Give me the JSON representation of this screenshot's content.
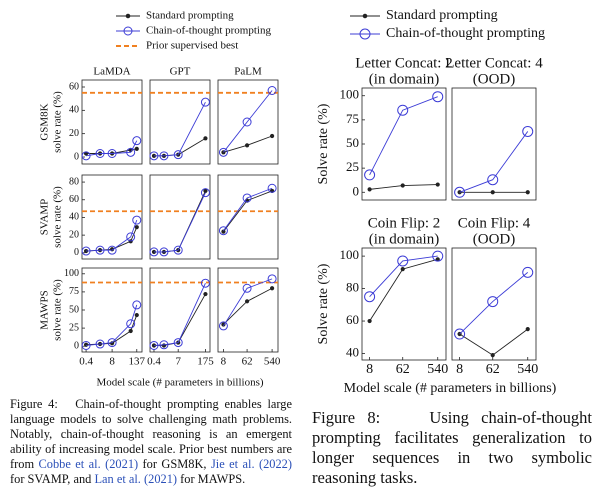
{
  "figure4": {
    "legend": [
      {
        "name": "Standard prompting",
        "color": "#222222",
        "marker": "dot"
      },
      {
        "name": "Chain-of-thought prompting",
        "color": "#3c3cd6",
        "marker": "circle"
      },
      {
        "name": "Prior supervised best",
        "color": "#f08020",
        "marker": "dashed"
      }
    ],
    "x_label": "Model scale (# parameters in billions)",
    "caption": {
      "label": "Figure 4:",
      "parts": [
        "Chain-of-thought prompting enables large language models to solve challenging math problems. Notably, chain-of-thought reasoning is an emergent ability of increasing model scale. Prior best numbers are from ",
        "Cobbe et al. (2021)",
        " for GSM8K, ",
        "Jie et al. (2022)",
        " for SVAMP, and ",
        "Lan et al. (2021)",
        " for MAWPS."
      ]
    }
  },
  "figure8": {
    "legend": [
      {
        "name": "Standard prompting",
        "color": "#222222",
        "marker": "dot"
      },
      {
        "name": "Chain-of-thought prompting",
        "color": "#3c3cd6",
        "marker": "circle"
      }
    ],
    "x_label": "Model scale (# parameters in billions)",
    "caption": {
      "label": "Figure 8:",
      "text": "Using chain-of-thought prompting facilitates generalization to longer sequences in two symbolic reasoning tasks."
    }
  },
  "chart_data": [
    {
      "type": "line",
      "title": [
        "LaMDA"
      ],
      "ylabel": [
        "GSM8K",
        "solve rate (%)"
      ],
      "log_x": true,
      "x": [
        0.4,
        2,
        8,
        68,
        137
      ],
      "xlim": [
        0.25,
        250
      ],
      "ylim": [
        -6,
        66
      ],
      "yticks": [
        0,
        20,
        40,
        60
      ],
      "reference": 55,
      "reference_color": "#f08020",
      "series": [
        {
          "color": "#222222",
          "marker": "dot",
          "values": [
            3,
            3,
            3,
            6,
            7
          ]
        },
        {
          "color": "#3c3cd6",
          "marker": "circle",
          "values": [
            1,
            3,
            3,
            4,
            14
          ]
        }
      ]
    },
    {
      "type": "line",
      "title": [
        "GPT"
      ],
      "log_x": true,
      "x": [
        0.4,
        1.3,
        7,
        175
      ],
      "xlim": [
        0.25,
        300
      ],
      "ylim": [
        -6,
        66
      ],
      "reference": 55,
      "reference_color": "#f08020",
      "series": [
        {
          "color": "#222222",
          "marker": "dot",
          "values": [
            1,
            1,
            2,
            16
          ]
        },
        {
          "color": "#3c3cd6",
          "marker": "circle",
          "values": [
            1,
            1,
            2,
            47
          ]
        }
      ]
    },
    {
      "type": "line",
      "title": [
        "PaLM"
      ],
      "log_x": true,
      "x": [
        8,
        62,
        540
      ],
      "xlim": [
        5,
        900
      ],
      "ylim": [
        -6,
        66
      ],
      "reference": 55,
      "reference_color": "#f08020",
      "series": [
        {
          "color": "#222222",
          "marker": "dot",
          "values": [
            4,
            10,
            18
          ]
        },
        {
          "color": "#3c3cd6",
          "marker": "circle",
          "values": [
            4,
            30,
            57
          ]
        }
      ]
    },
    {
      "type": "line",
      "ylabel": [
        "SVAMP",
        "solve rate (%)"
      ],
      "log_x": true,
      "x": [
        0.4,
        2,
        8,
        68,
        137
      ],
      "xlim": [
        0.25,
        250
      ],
      "ylim": [
        -7,
        88
      ],
      "yticks": [
        0,
        20,
        40,
        60,
        80
      ],
      "reference": 47,
      "reference_color": "#f08020",
      "series": [
        {
          "color": "#222222",
          "marker": "dot",
          "values": [
            2,
            3,
            4,
            13,
            29
          ]
        },
        {
          "color": "#3c3cd6",
          "marker": "circle",
          "values": [
            2,
            3,
            3,
            18,
            37
          ]
        }
      ]
    },
    {
      "type": "line",
      "log_x": true,
      "x": [
        0.4,
        1.3,
        7,
        175
      ],
      "xlim": [
        0.25,
        300
      ],
      "ylim": [
        -7,
        88
      ],
      "reference": 47,
      "reference_color": "#f08020",
      "series": [
        {
          "color": "#222222",
          "marker": "dot",
          "values": [
            1,
            1,
            3,
            70
          ]
        },
        {
          "color": "#3c3cd6",
          "marker": "circle",
          "values": [
            1,
            1,
            3,
            68
          ]
        }
      ]
    },
    {
      "type": "line",
      "log_x": true,
      "x": [
        8,
        62,
        540
      ],
      "xlim": [
        5,
        900
      ],
      "ylim": [
        -7,
        88
      ],
      "reference": 47,
      "reference_color": "#f08020",
      "series": [
        {
          "color": "#222222",
          "marker": "dot",
          "values": [
            24,
            59,
            70
          ]
        },
        {
          "color": "#3c3cd6",
          "marker": "circle",
          "values": [
            25,
            62,
            73
          ]
        }
      ]
    },
    {
      "type": "line",
      "ylabel": [
        "MAWPS",
        "solve rate (%)"
      ],
      "log_x": true,
      "x": [
        0.4,
        2,
        8,
        68,
        137
      ],
      "xlim": [
        0.25,
        250
      ],
      "xticks": [
        0.4,
        8,
        137
      ],
      "ylim": [
        -8,
        108
      ],
      "yticks": [
        0,
        25,
        50,
        75,
        100
      ],
      "reference": 88,
      "reference_color": "#f08020",
      "series": [
        {
          "color": "#222222",
          "marker": "dot",
          "values": [
            2,
            3,
            4,
            21,
            43
          ]
        },
        {
          "color": "#3c3cd6",
          "marker": "circle",
          "values": [
            1,
            3,
            5,
            31,
            57
          ]
        }
      ]
    },
    {
      "type": "line",
      "log_x": true,
      "x": [
        0.4,
        1.3,
        7,
        175
      ],
      "xlim": [
        0.25,
        300
      ],
      "xticks": [
        0.4,
        7,
        175
      ],
      "ylim": [
        -8,
        108
      ],
      "reference": 88,
      "reference_color": "#f08020",
      "series": [
        {
          "color": "#222222",
          "marker": "dot",
          "values": [
            1,
            1,
            5,
            72
          ]
        },
        {
          "color": "#3c3cd6",
          "marker": "circle",
          "values": [
            1,
            2,
            5,
            87
          ]
        }
      ]
    },
    {
      "type": "line",
      "log_x": true,
      "x": [
        8,
        62,
        540
      ],
      "xlim": [
        5,
        900
      ],
      "xticks": [
        8,
        62,
        540
      ],
      "ylim": [
        -8,
        108
      ],
      "reference": 88,
      "reference_color": "#f08020",
      "series": [
        {
          "color": "#222222",
          "marker": "dot",
          "values": [
            30,
            62,
            80
          ]
        },
        {
          "color": "#3c3cd6",
          "marker": "circle",
          "values": [
            28,
            80,
            93
          ]
        }
      ]
    },
    {
      "type": "line",
      "title": [
        "Letter Concat: 2",
        "(in domain)"
      ],
      "ylabel": [
        "Solve rate (%)"
      ],
      "log_x": true,
      "x": [
        8,
        62,
        540
      ],
      "xlim": [
        5,
        900
      ],
      "ylim": [
        -8,
        108
      ],
      "yticks": [
        0,
        25,
        50,
        75,
        100
      ],
      "series": [
        {
          "color": "#222222",
          "marker": "dot",
          "values": [
            3,
            7,
            8
          ]
        },
        {
          "color": "#3c3cd6",
          "marker": "circle",
          "values": [
            18,
            85,
            99
          ]
        }
      ]
    },
    {
      "type": "line",
      "title": [
        "Letter Concat: 4",
        "(OOD)"
      ],
      "log_x": true,
      "x": [
        8,
        62,
        540
      ],
      "xlim": [
        5,
        900
      ],
      "ylim": [
        -8,
        108
      ],
      "series": [
        {
          "color": "#222222",
          "marker": "dot",
          "values": [
            0,
            0,
            0
          ]
        },
        {
          "color": "#3c3cd6",
          "marker": "circle",
          "values": [
            0,
            13,
            63
          ]
        }
      ]
    },
    {
      "type": "line",
      "title": [
        "Coin Flip: 2",
        "(in domain)"
      ],
      "ylabel": [
        "Solve rate (%)"
      ],
      "log_x": true,
      "x": [
        8,
        62,
        540
      ],
      "xlim": [
        5,
        900
      ],
      "xticks": [
        8,
        62,
        540
      ],
      "ylim": [
        36,
        105
      ],
      "yticks": [
        40,
        60,
        80,
        100
      ],
      "series": [
        {
          "color": "#222222",
          "marker": "dot",
          "values": [
            60,
            92,
            98
          ]
        },
        {
          "color": "#3c3cd6",
          "marker": "circle",
          "values": [
            75,
            97,
            100
          ]
        }
      ]
    },
    {
      "type": "line",
      "title": [
        "Coin Flip: 4",
        "(OOD)"
      ],
      "log_x": true,
      "x": [
        8,
        62,
        540
      ],
      "xlim": [
        5,
        900
      ],
      "xticks": [
        8,
        62,
        540
      ],
      "ylim": [
        36,
        105
      ],
      "series": [
        {
          "color": "#222222",
          "marker": "dot",
          "values": [
            52,
            39,
            55
          ]
        },
        {
          "color": "#3c3cd6",
          "marker": "circle",
          "values": [
            52,
            72,
            90
          ]
        }
      ]
    }
  ]
}
